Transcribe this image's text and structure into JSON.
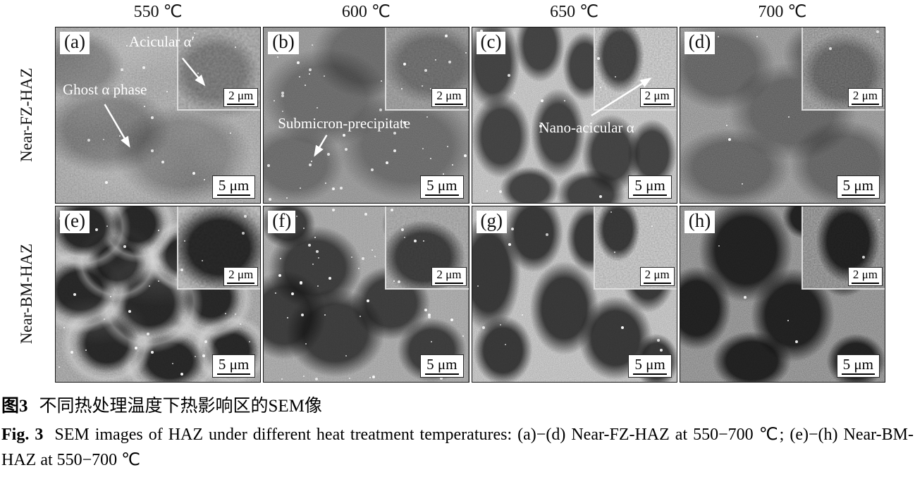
{
  "figure": {
    "column_headers": [
      "550 ℃",
      "600 ℃",
      "650 ℃",
      "700 ℃"
    ],
    "row_labels": [
      "Near-FZ-HAZ",
      "Near-BM-HAZ"
    ],
    "panels": [
      {
        "id": "a",
        "label": "(a)",
        "main_scale": "5 μm",
        "inset_scale": "2 μm",
        "annotations": [
          "Acicular α′",
          "Ghost α phase"
        ]
      },
      {
        "id": "b",
        "label": "(b)",
        "main_scale": "5 μm",
        "inset_scale": "2 μm",
        "annotations": [
          "Submicron-precipitate"
        ]
      },
      {
        "id": "c",
        "label": "(c)",
        "main_scale": "5 μm",
        "inset_scale": "2 μm",
        "annotations": [
          "Nano-acicular α"
        ]
      },
      {
        "id": "d",
        "label": "(d)",
        "main_scale": "5 μm",
        "inset_scale": "2 μm",
        "annotations": []
      },
      {
        "id": "e",
        "label": "(e)",
        "main_scale": "5 μm",
        "inset_scale": "2 μm",
        "annotations": []
      },
      {
        "id": "f",
        "label": "(f)",
        "main_scale": "5 μm",
        "inset_scale": "2 μm",
        "annotations": []
      },
      {
        "id": "g",
        "label": "(g)",
        "main_scale": "5 μm",
        "inset_scale": "2 μm",
        "annotations": []
      },
      {
        "id": "h",
        "label": "(h)",
        "main_scale": "5 μm",
        "inset_scale": "2 μm",
        "annotations": []
      }
    ],
    "caption": {
      "zh_prefix": "图3",
      "zh_text": "不同热处理温度下热影响区的SEM像",
      "en_prefix": "Fig. 3",
      "en_text": "SEM images of HAZ under different heat treatment temperatures: (a)−(d) Near-FZ-HAZ at 550−700 ℃; (e)−(h) Near-BM-HAZ at 550−700 ℃"
    },
    "colors": {
      "annotation": "#ffffff",
      "scale_text": "#000000",
      "inset_border": "#dcdcdc"
    }
  }
}
